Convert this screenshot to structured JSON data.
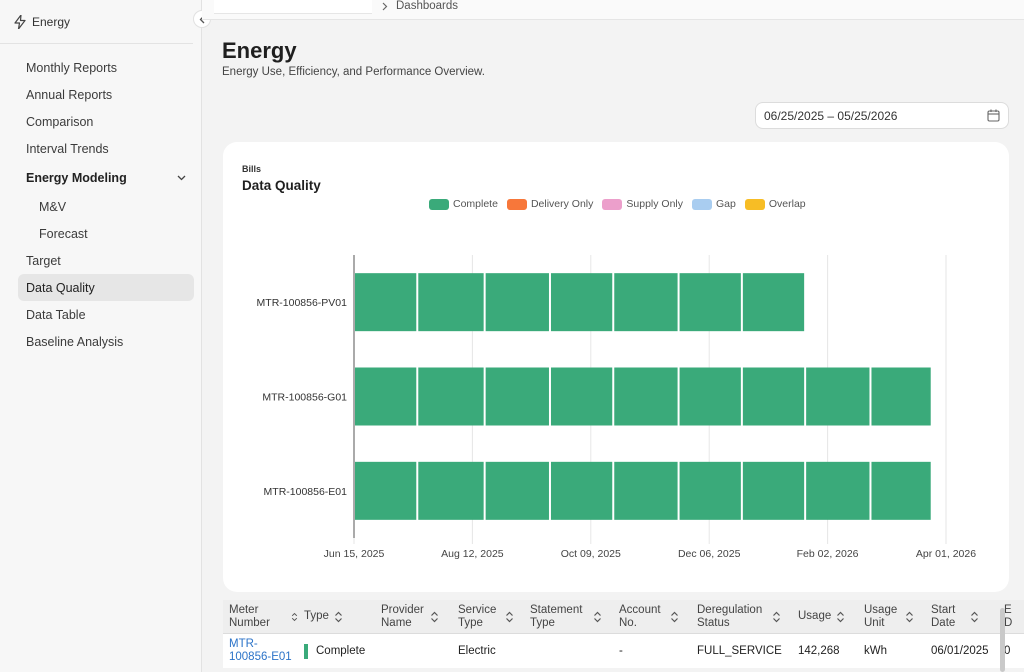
{
  "app": {
    "title": "Energy"
  },
  "sidebar": {
    "items": [
      {
        "label": "Monthly Reports",
        "kind": "item"
      },
      {
        "label": "Annual Reports",
        "kind": "item"
      },
      {
        "label": "Comparison",
        "kind": "item"
      },
      {
        "label": "Interval Trends",
        "kind": "item"
      },
      {
        "label": "Energy Modeling",
        "kind": "group"
      },
      {
        "label": "M&V",
        "kind": "sub"
      },
      {
        "label": "Forecast",
        "kind": "sub"
      },
      {
        "label": "Target",
        "kind": "item"
      },
      {
        "label": "Data Quality",
        "kind": "item",
        "active": true
      },
      {
        "label": "Data Table",
        "kind": "item"
      },
      {
        "label": "Baseline Analysis",
        "kind": "item"
      }
    ]
  },
  "breadcrumb": {
    "label": "Dashboards"
  },
  "header": {
    "title": "Energy",
    "subtitle": "Energy Use, Efficiency, and Performance Overview."
  },
  "date_range": {
    "value": "06/25/2025 – 05/25/2026"
  },
  "card": {
    "eyebrow": "Bills",
    "title": "Data Quality"
  },
  "legend": [
    {
      "label": "Complete",
      "color": "#3aaa7a"
    },
    {
      "label": "Delivery Only",
      "color": "#f7773a"
    },
    {
      "label": "Supply Only",
      "color": "#ec9fcb"
    },
    {
      "label": "Gap",
      "color": "#a9cdf0"
    },
    {
      "label": "Overlap",
      "color": "#f7bd25"
    }
  ],
  "chart_data": {
    "type": "timeline",
    "title": "Data Quality",
    "x_ticks": [
      "Jun 15, 2025",
      "Aug 12, 2025",
      "Oct 09, 2025",
      "Dec 06, 2025",
      "Feb 02, 2026",
      "Apr 01, 2026"
    ],
    "x_range": [
      "2025-06-15",
      "2026-04-01"
    ],
    "grid": true,
    "meters": [
      {
        "name": "MTR-100856-PV01",
        "segments": [
          {
            "start": "2025-06-15",
            "end": "2025-07-16",
            "status": "Complete"
          },
          {
            "start": "2025-07-16",
            "end": "2025-08-18",
            "status": "Complete"
          },
          {
            "start": "2025-08-18",
            "end": "2025-09-19",
            "status": "Complete"
          },
          {
            "start": "2025-09-19",
            "end": "2025-10-20",
            "status": "Complete"
          },
          {
            "start": "2025-10-20",
            "end": "2025-11-21",
            "status": "Complete"
          },
          {
            "start": "2025-11-21",
            "end": "2025-12-22",
            "status": "Complete"
          },
          {
            "start": "2025-12-22",
            "end": "2026-01-22",
            "status": "Complete"
          }
        ]
      },
      {
        "name": "MTR-100856-G01",
        "segments": [
          {
            "start": "2025-06-15",
            "end": "2025-07-16",
            "status": "Complete"
          },
          {
            "start": "2025-07-16",
            "end": "2025-08-18",
            "status": "Complete"
          },
          {
            "start": "2025-08-18",
            "end": "2025-09-19",
            "status": "Complete"
          },
          {
            "start": "2025-09-19",
            "end": "2025-10-20",
            "status": "Complete"
          },
          {
            "start": "2025-10-20",
            "end": "2025-11-21",
            "status": "Complete"
          },
          {
            "start": "2025-11-21",
            "end": "2025-12-22",
            "status": "Complete"
          },
          {
            "start": "2025-12-22",
            "end": "2026-01-22",
            "status": "Complete"
          },
          {
            "start": "2026-01-22",
            "end": "2026-02-23",
            "status": "Complete"
          },
          {
            "start": "2026-02-23",
            "end": "2026-03-25",
            "status": "Complete"
          }
        ]
      },
      {
        "name": "MTR-100856-E01",
        "segments": [
          {
            "start": "2025-06-15",
            "end": "2025-07-16",
            "status": "Complete"
          },
          {
            "start": "2025-07-16",
            "end": "2025-08-18",
            "status": "Complete"
          },
          {
            "start": "2025-08-18",
            "end": "2025-09-19",
            "status": "Complete"
          },
          {
            "start": "2025-09-19",
            "end": "2025-10-20",
            "status": "Complete"
          },
          {
            "start": "2025-10-20",
            "end": "2025-11-21",
            "status": "Complete"
          },
          {
            "start": "2025-11-21",
            "end": "2025-12-22",
            "status": "Complete"
          },
          {
            "start": "2025-12-22",
            "end": "2026-01-22",
            "status": "Complete"
          },
          {
            "start": "2026-01-22",
            "end": "2026-02-23",
            "status": "Complete"
          },
          {
            "start": "2026-02-23",
            "end": "2026-03-25",
            "status": "Complete"
          }
        ]
      }
    ]
  },
  "table": {
    "columns": [
      "Meter Number",
      "Type",
      "Provider Name",
      "Service Type",
      "Statement Type",
      "Account No.",
      "Deregulation Status",
      "Usage",
      "Usage Unit",
      "Start Date",
      "E D"
    ],
    "rows": [
      {
        "meter": "MTR-100856-E01",
        "type": "Complete",
        "provider": "",
        "service": "Electric",
        "statement": "",
        "account": "-",
        "dereg": "FULL_SERVICE",
        "usage": "142,268",
        "unit": "kWh",
        "start": "06/01/2025",
        "end": "0"
      }
    ]
  }
}
